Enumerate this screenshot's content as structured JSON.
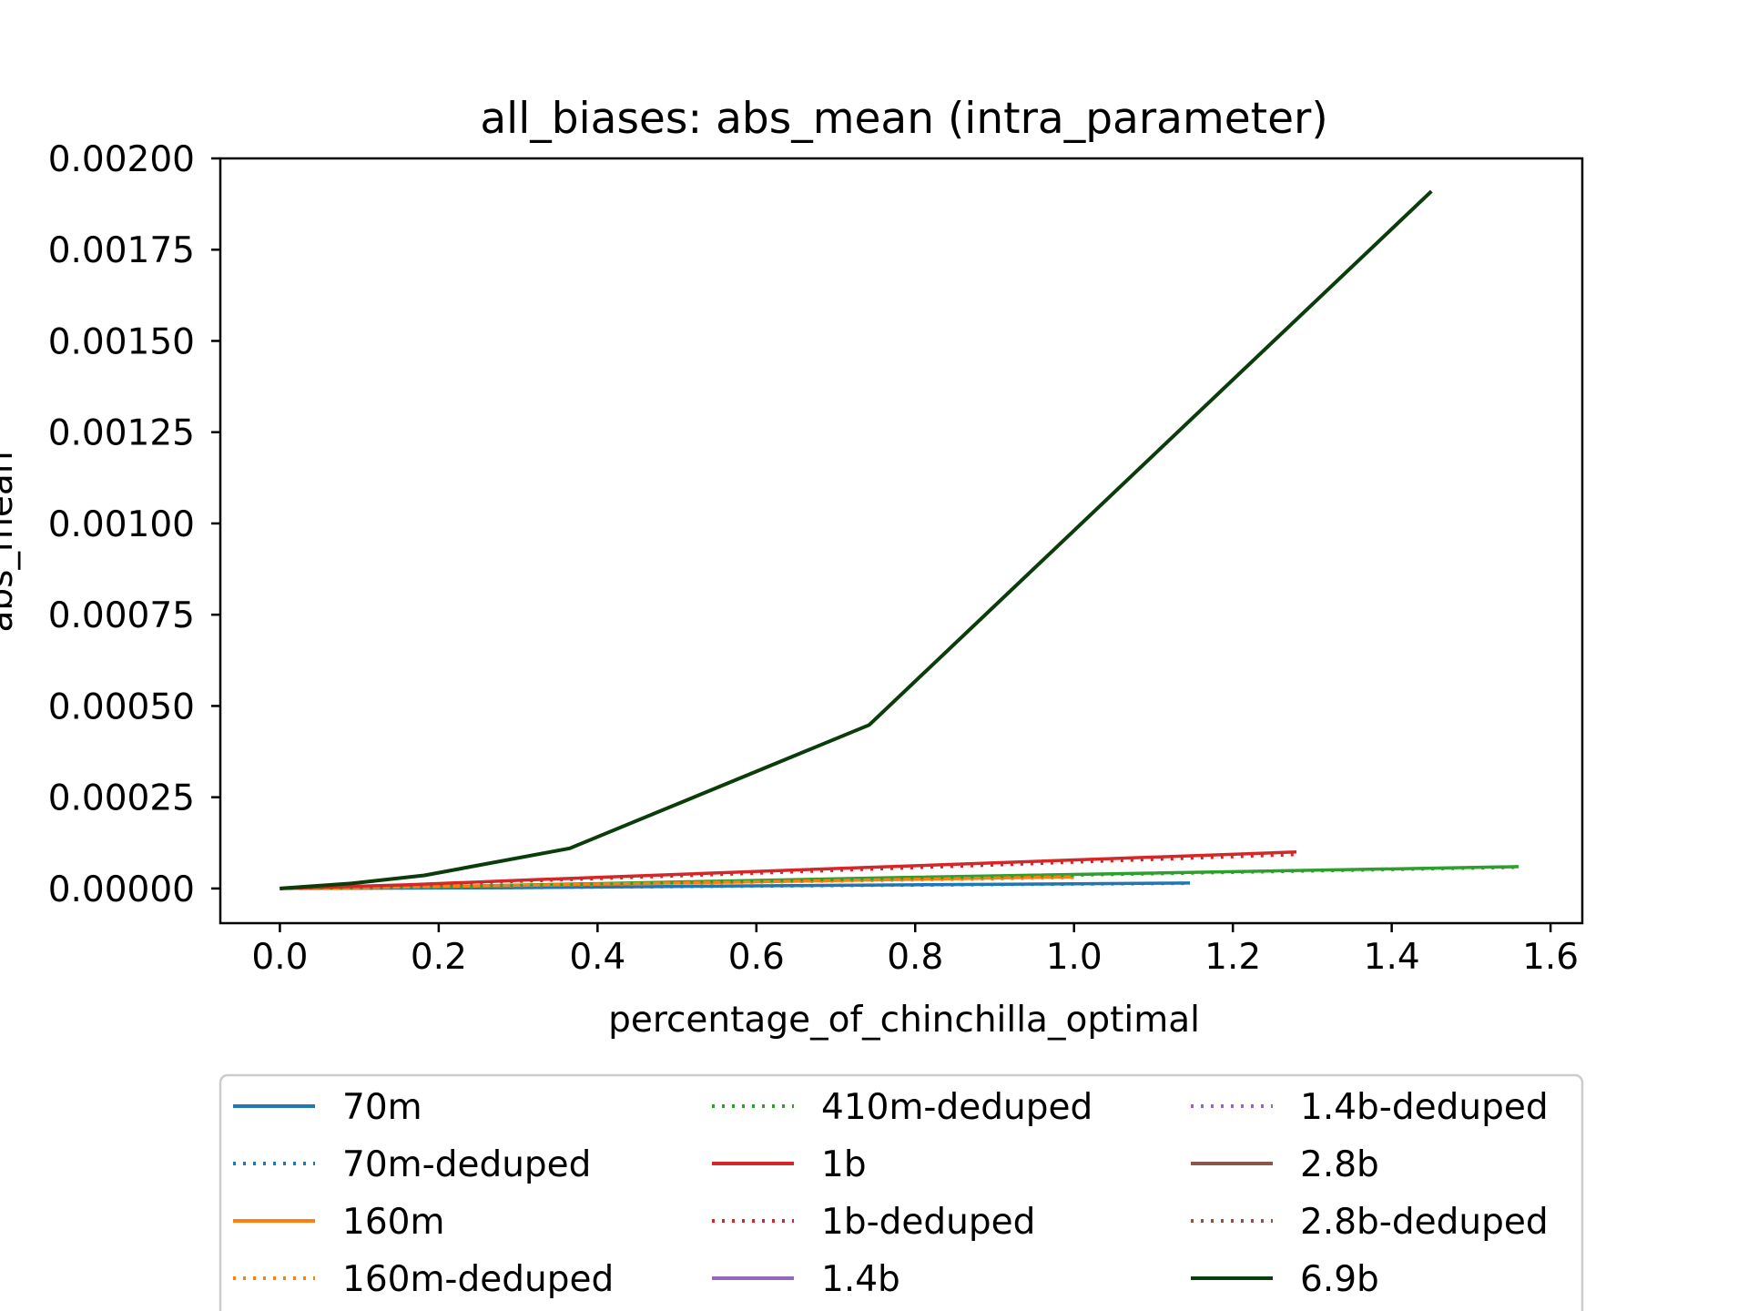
{
  "chart_data": {
    "type": "line",
    "title": "all_biases: abs_mean (intra_parameter)",
    "xlabel": "percentage_of_chinchilla_optimal",
    "ylabel": "abs_mean",
    "xlim": [
      -0.075,
      1.64
    ],
    "ylim": [
      -9.5e-05,
      0.002
    ],
    "x_ticks": [
      "0.0",
      "0.2",
      "0.4",
      "0.6",
      "0.8",
      "1.0",
      "1.2",
      "1.4",
      "1.6"
    ],
    "y_ticks": [
      "0.00000",
      "0.00025",
      "0.00050",
      "0.00075",
      "0.00100",
      "0.00125",
      "0.00150",
      "0.00175",
      "0.00200"
    ],
    "legend_position": "below plot",
    "grid": false,
    "series": [
      {
        "name": "70m",
        "color": "#1f77b4",
        "style": "solid",
        "x": [
          0.0,
          0.143,
          0.286,
          0.573,
          1.146
        ],
        "y": [
          0.0,
          1e-06,
          2e-06,
          7e-06,
          1.5e-05
        ]
      },
      {
        "name": "70m-deduped",
        "color": "#1f77b4",
        "style": "dotted",
        "x": [
          0.0,
          0.143,
          0.286,
          0.573,
          1.146
        ],
        "y": [
          0.0,
          1e-06,
          2e-06,
          6e-06,
          1.4e-05
        ]
      },
      {
        "name": "160m",
        "color": "#ff7f0e",
        "style": "solid",
        "x": [
          0.0,
          0.125,
          0.25,
          0.5,
          1.0
        ],
        "y": [
          0.0,
          3e-06,
          7e-06,
          1.5e-05,
          3.2e-05
        ]
      },
      {
        "name": "160m-deduped",
        "color": "#ff7f0e",
        "style": "dotted",
        "x": [
          0.0,
          0.125,
          0.25,
          0.5,
          1.0
        ],
        "y": [
          0.0,
          3e-06,
          6e-06,
          1.4e-05,
          3e-05
        ]
      },
      {
        "name": "410m-deduped",
        "color": "#2ca02c",
        "style": "dotted",
        "x": [
          0.0,
          0.195,
          0.39,
          0.78,
          1.56
        ],
        "y": [
          0.0,
          5e-06,
          1.2e-05,
          2.8e-05,
          5.8e-05
        ]
      },
      {
        "name": "1b",
        "color": "#d62728",
        "style": "solid",
        "x": [
          0.0,
          0.16,
          0.32,
          0.64,
          1.28
        ],
        "y": [
          0.0,
          1e-05,
          2.4e-05,
          5e-05,
          0.0001
        ]
      },
      {
        "name": "1b-deduped",
        "color": "#d62728",
        "style": "dotted",
        "x": [
          0.0,
          0.16,
          0.32,
          0.64,
          1.28
        ],
        "y": [
          0.0,
          9e-06,
          2.1e-05,
          4.5e-05,
          9.3e-05
        ]
      },
      {
        "name": "1.4b",
        "color": "#9467bd",
        "style": "solid",
        "x": [],
        "y": []
      },
      {
        "name": "1.4b-deduped",
        "color": "#9467bd",
        "style": "dotted",
        "x": [],
        "y": []
      },
      {
        "name": "2.8b",
        "color": "#8c564b",
        "style": "solid",
        "x": [],
        "y": []
      },
      {
        "name": "2.8b-deduped",
        "color": "#8c564b",
        "style": "dotted",
        "x": [],
        "y": []
      },
      {
        "name": "6.9b",
        "color": "#0b3d0b",
        "style": "solid",
        "x": [
          0.0,
          0.091,
          0.182,
          0.365,
          0.742,
          1.45
        ],
        "y": [
          0.0,
          1.4e-05,
          3.6e-05,
          0.00011,
          0.000448,
          0.00191
        ]
      }
    ],
    "extra_series": [
      {
        "name": "",
        "color": "#2ca02c",
        "style": "solid",
        "x": [
          0.0,
          0.195,
          0.39,
          0.78,
          1.56
        ],
        "y": [
          0.0,
          5e-06,
          1.3e-05,
          3e-05,
          6e-05
        ]
      }
    ]
  }
}
